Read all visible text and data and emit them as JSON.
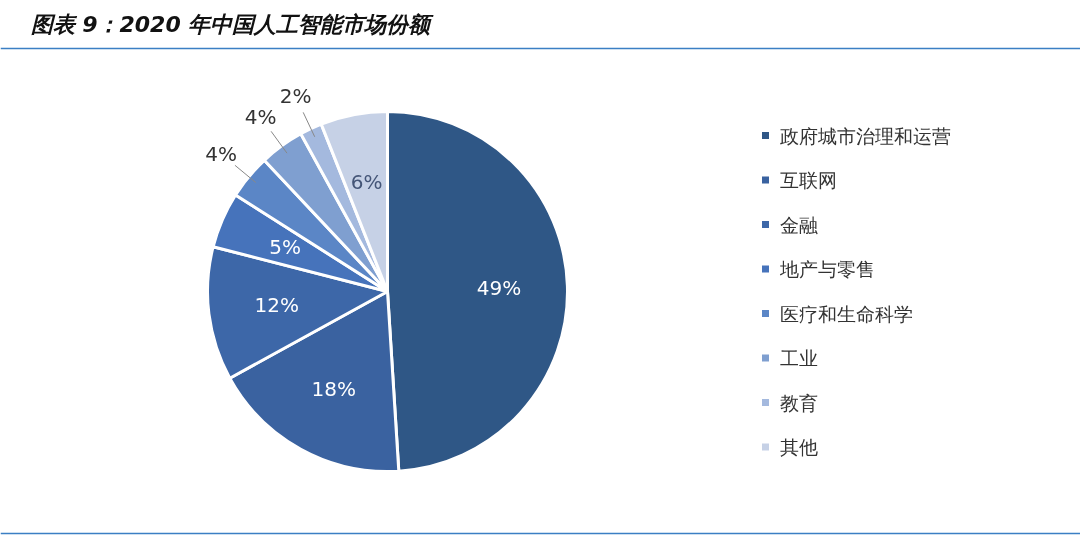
{
  "chart_data": {
    "type": "pie",
    "title": "图表 9：2020 年中国人工智能市场份额",
    "categories": [
      "政府城市治理和运营",
      "互联网",
      "金融",
      "地产与零售",
      "医疗和生命科学",
      "工业",
      "教育",
      "其他"
    ],
    "values": [
      49,
      18,
      12,
      5,
      4,
      4,
      2,
      6
    ],
    "colors": [
      "#2f5786",
      "#3a62a0",
      "#3d67a8",
      "#4673bb",
      "#5b86c6",
      "#7f9fd0",
      "#a4b9de",
      "#c6d1e6"
    ],
    "value_labels": [
      "49%",
      "18%",
      "12%",
      "5%",
      "4%",
      "4%",
      "2%",
      "6%"
    ],
    "legend": "right"
  }
}
